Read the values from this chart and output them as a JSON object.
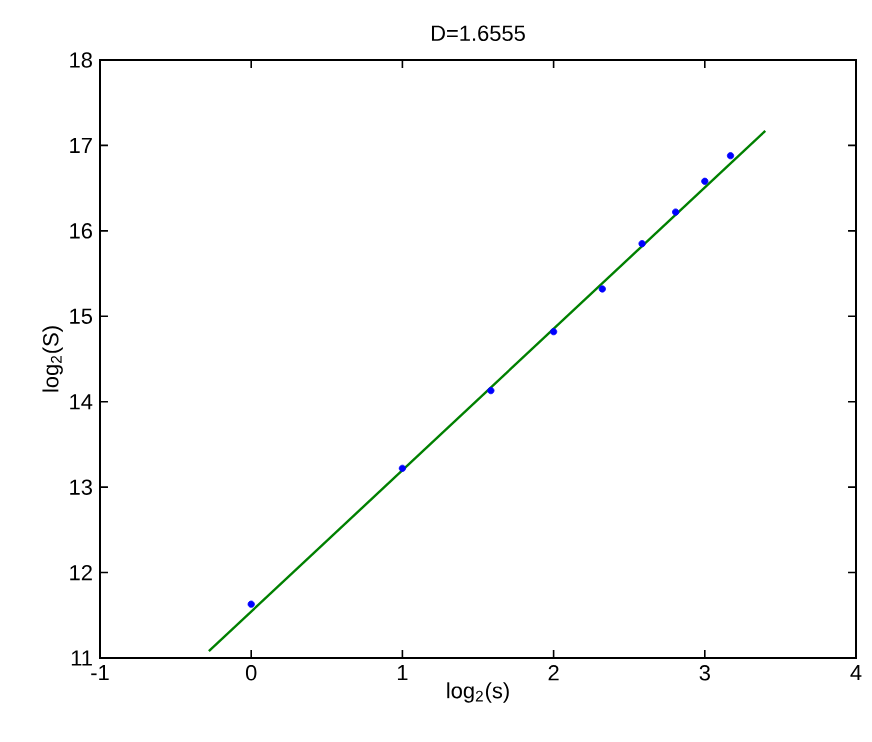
{
  "chart_data": {
    "type": "scatter",
    "title": "D=1.6555",
    "xlabel": "log$_{2}$(s)",
    "ylabel": "log$_{2}$(S)",
    "xlim": [
      -1,
      4
    ],
    "xticks": [
      -1,
      0,
      1,
      2,
      3,
      4
    ],
    "ylim": [
      11,
      18
    ],
    "yticks": [
      11,
      12,
      13,
      14,
      15,
      16,
      17,
      18
    ],
    "grid": false,
    "series": [
      {
        "marker": "circle",
        "color": "#0000ff",
        "x": [
          0,
          1,
          1.585,
          2,
          2.322,
          2.585,
          2.807,
          3,
          3.17
        ],
        "values": [
          11.63,
          13.22,
          14.13,
          14.82,
          15.32,
          15.85,
          16.22,
          16.58,
          16.88
        ]
      },
      {
        "type": "line",
        "marker": "none",
        "color": "#008000",
        "x": [
          -0.28,
          3.4
        ],
        "values": [
          11.08,
          17.17
        ]
      }
    ]
  }
}
